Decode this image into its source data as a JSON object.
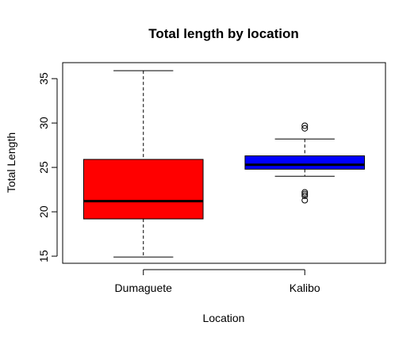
{
  "chart_data": {
    "type": "box",
    "title": "Total length by location",
    "xlabel": "Location",
    "ylabel": "Total Length",
    "categories": [
      "Dumaguete",
      "Kalibo"
    ],
    "yticks": [
      15,
      20,
      25,
      30,
      35
    ],
    "ylim": [
      14.2,
      36.8
    ],
    "boxes": [
      {
        "category": "Dumaguete",
        "min": 14.9,
        "q1": 19.2,
        "median": 21.2,
        "q3": 25.9,
        "max": 35.9,
        "outliers": [],
        "color": "#ff0000"
      },
      {
        "category": "Kalibo",
        "min": 24.0,
        "q1": 24.8,
        "median": 25.3,
        "q3": 26.3,
        "max": 28.2,
        "outliers": [
          29.4,
          29.7,
          22.0,
          22.2,
          21.8,
          21.3
        ],
        "color": "#0000ff"
      }
    ],
    "grid": false,
    "legend": "none"
  }
}
